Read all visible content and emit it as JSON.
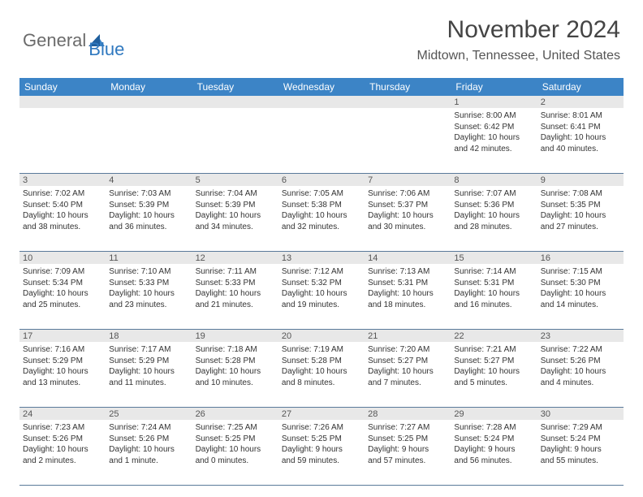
{
  "logo": {
    "part1": "General",
    "part2": "Blue"
  },
  "title": "November 2024",
  "location": "Midtown, Tennessee, United States",
  "colors": {
    "header_bg": "#3c84c6",
    "header_text": "#ffffff",
    "daynum_bg": "#e8e8e8",
    "border": "#5a7a9a",
    "logo_gray": "#6b6b6b",
    "logo_blue": "#2f78bf"
  },
  "day_names": [
    "Sunday",
    "Monday",
    "Tuesday",
    "Wednesday",
    "Thursday",
    "Friday",
    "Saturday"
  ],
  "weeks": [
    [
      {
        "day": "",
        "sunrise": "",
        "sunset": "",
        "daylight1": "",
        "daylight2": ""
      },
      {
        "day": "",
        "sunrise": "",
        "sunset": "",
        "daylight1": "",
        "daylight2": ""
      },
      {
        "day": "",
        "sunrise": "",
        "sunset": "",
        "daylight1": "",
        "daylight2": ""
      },
      {
        "day": "",
        "sunrise": "",
        "sunset": "",
        "daylight1": "",
        "daylight2": ""
      },
      {
        "day": "",
        "sunrise": "",
        "sunset": "",
        "daylight1": "",
        "daylight2": ""
      },
      {
        "day": "1",
        "sunrise": "Sunrise: 8:00 AM",
        "sunset": "Sunset: 6:42 PM",
        "daylight1": "Daylight: 10 hours",
        "daylight2": "and 42 minutes."
      },
      {
        "day": "2",
        "sunrise": "Sunrise: 8:01 AM",
        "sunset": "Sunset: 6:41 PM",
        "daylight1": "Daylight: 10 hours",
        "daylight2": "and 40 minutes."
      }
    ],
    [
      {
        "day": "3",
        "sunrise": "Sunrise: 7:02 AM",
        "sunset": "Sunset: 5:40 PM",
        "daylight1": "Daylight: 10 hours",
        "daylight2": "and 38 minutes."
      },
      {
        "day": "4",
        "sunrise": "Sunrise: 7:03 AM",
        "sunset": "Sunset: 5:39 PM",
        "daylight1": "Daylight: 10 hours",
        "daylight2": "and 36 minutes."
      },
      {
        "day": "5",
        "sunrise": "Sunrise: 7:04 AM",
        "sunset": "Sunset: 5:39 PM",
        "daylight1": "Daylight: 10 hours",
        "daylight2": "and 34 minutes."
      },
      {
        "day": "6",
        "sunrise": "Sunrise: 7:05 AM",
        "sunset": "Sunset: 5:38 PM",
        "daylight1": "Daylight: 10 hours",
        "daylight2": "and 32 minutes."
      },
      {
        "day": "7",
        "sunrise": "Sunrise: 7:06 AM",
        "sunset": "Sunset: 5:37 PM",
        "daylight1": "Daylight: 10 hours",
        "daylight2": "and 30 minutes."
      },
      {
        "day": "8",
        "sunrise": "Sunrise: 7:07 AM",
        "sunset": "Sunset: 5:36 PM",
        "daylight1": "Daylight: 10 hours",
        "daylight2": "and 28 minutes."
      },
      {
        "day": "9",
        "sunrise": "Sunrise: 7:08 AM",
        "sunset": "Sunset: 5:35 PM",
        "daylight1": "Daylight: 10 hours",
        "daylight2": "and 27 minutes."
      }
    ],
    [
      {
        "day": "10",
        "sunrise": "Sunrise: 7:09 AM",
        "sunset": "Sunset: 5:34 PM",
        "daylight1": "Daylight: 10 hours",
        "daylight2": "and 25 minutes."
      },
      {
        "day": "11",
        "sunrise": "Sunrise: 7:10 AM",
        "sunset": "Sunset: 5:33 PM",
        "daylight1": "Daylight: 10 hours",
        "daylight2": "and 23 minutes."
      },
      {
        "day": "12",
        "sunrise": "Sunrise: 7:11 AM",
        "sunset": "Sunset: 5:33 PM",
        "daylight1": "Daylight: 10 hours",
        "daylight2": "and 21 minutes."
      },
      {
        "day": "13",
        "sunrise": "Sunrise: 7:12 AM",
        "sunset": "Sunset: 5:32 PM",
        "daylight1": "Daylight: 10 hours",
        "daylight2": "and 19 minutes."
      },
      {
        "day": "14",
        "sunrise": "Sunrise: 7:13 AM",
        "sunset": "Sunset: 5:31 PM",
        "daylight1": "Daylight: 10 hours",
        "daylight2": "and 18 minutes."
      },
      {
        "day": "15",
        "sunrise": "Sunrise: 7:14 AM",
        "sunset": "Sunset: 5:31 PM",
        "daylight1": "Daylight: 10 hours",
        "daylight2": "and 16 minutes."
      },
      {
        "day": "16",
        "sunrise": "Sunrise: 7:15 AM",
        "sunset": "Sunset: 5:30 PM",
        "daylight1": "Daylight: 10 hours",
        "daylight2": "and 14 minutes."
      }
    ],
    [
      {
        "day": "17",
        "sunrise": "Sunrise: 7:16 AM",
        "sunset": "Sunset: 5:29 PM",
        "daylight1": "Daylight: 10 hours",
        "daylight2": "and 13 minutes."
      },
      {
        "day": "18",
        "sunrise": "Sunrise: 7:17 AM",
        "sunset": "Sunset: 5:29 PM",
        "daylight1": "Daylight: 10 hours",
        "daylight2": "and 11 minutes."
      },
      {
        "day": "19",
        "sunrise": "Sunrise: 7:18 AM",
        "sunset": "Sunset: 5:28 PM",
        "daylight1": "Daylight: 10 hours",
        "daylight2": "and 10 minutes."
      },
      {
        "day": "20",
        "sunrise": "Sunrise: 7:19 AM",
        "sunset": "Sunset: 5:28 PM",
        "daylight1": "Daylight: 10 hours",
        "daylight2": "and 8 minutes."
      },
      {
        "day": "21",
        "sunrise": "Sunrise: 7:20 AM",
        "sunset": "Sunset: 5:27 PM",
        "daylight1": "Daylight: 10 hours",
        "daylight2": "and 7 minutes."
      },
      {
        "day": "22",
        "sunrise": "Sunrise: 7:21 AM",
        "sunset": "Sunset: 5:27 PM",
        "daylight1": "Daylight: 10 hours",
        "daylight2": "and 5 minutes."
      },
      {
        "day": "23",
        "sunrise": "Sunrise: 7:22 AM",
        "sunset": "Sunset: 5:26 PM",
        "daylight1": "Daylight: 10 hours",
        "daylight2": "and 4 minutes."
      }
    ],
    [
      {
        "day": "24",
        "sunrise": "Sunrise: 7:23 AM",
        "sunset": "Sunset: 5:26 PM",
        "daylight1": "Daylight: 10 hours",
        "daylight2": "and 2 minutes."
      },
      {
        "day": "25",
        "sunrise": "Sunrise: 7:24 AM",
        "sunset": "Sunset: 5:26 PM",
        "daylight1": "Daylight: 10 hours",
        "daylight2": "and 1 minute."
      },
      {
        "day": "26",
        "sunrise": "Sunrise: 7:25 AM",
        "sunset": "Sunset: 5:25 PM",
        "daylight1": "Daylight: 10 hours",
        "daylight2": "and 0 minutes."
      },
      {
        "day": "27",
        "sunrise": "Sunrise: 7:26 AM",
        "sunset": "Sunset: 5:25 PM",
        "daylight1": "Daylight: 9 hours",
        "daylight2": "and 59 minutes."
      },
      {
        "day": "28",
        "sunrise": "Sunrise: 7:27 AM",
        "sunset": "Sunset: 5:25 PM",
        "daylight1": "Daylight: 9 hours",
        "daylight2": "and 57 minutes."
      },
      {
        "day": "29",
        "sunrise": "Sunrise: 7:28 AM",
        "sunset": "Sunset: 5:24 PM",
        "daylight1": "Daylight: 9 hours",
        "daylight2": "and 56 minutes."
      },
      {
        "day": "30",
        "sunrise": "Sunrise: 7:29 AM",
        "sunset": "Sunset: 5:24 PM",
        "daylight1": "Daylight: 9 hours",
        "daylight2": "and 55 minutes."
      }
    ]
  ]
}
